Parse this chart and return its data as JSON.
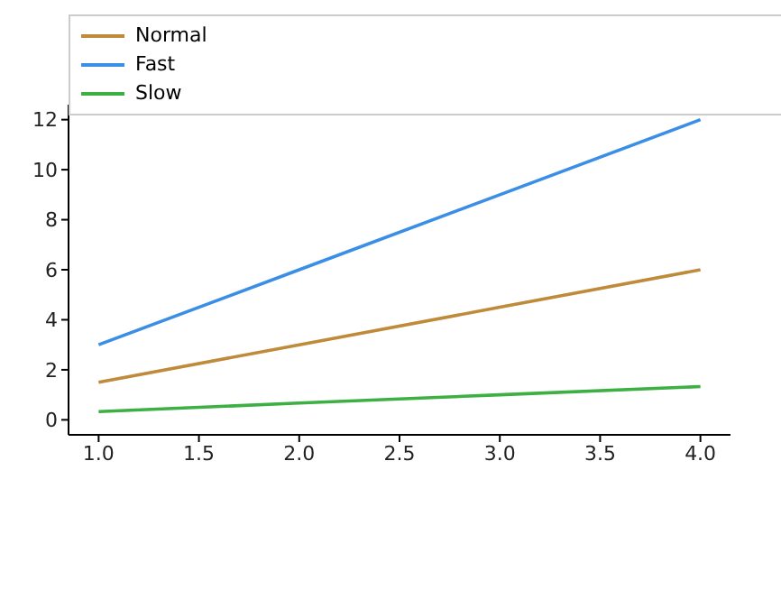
{
  "chart_data": {
    "type": "line",
    "x": [
      1,
      2,
      3,
      4
    ],
    "series": [
      {
        "name": "Normal",
        "color": "#bf8a3a",
        "values": [
          1.5,
          3,
          4.5,
          6
        ]
      },
      {
        "name": "Fast",
        "color": "#3a8ee6",
        "values": [
          3,
          6,
          9,
          12
        ]
      },
      {
        "name": "Slow",
        "color": "#3cb043",
        "values": [
          0.33,
          0.67,
          1,
          1.33
        ]
      }
    ],
    "xlim": [
      0.85,
      4.15
    ],
    "xticks": [
      {
        "value": 1,
        "label": "1.0"
      },
      {
        "value": 1.5,
        "label": "1.5"
      },
      {
        "value": 2,
        "label": "2.0"
      },
      {
        "value": 2.5,
        "label": "2.5"
      },
      {
        "value": 3,
        "label": "3.0"
      },
      {
        "value": 3.5,
        "label": "3.5"
      },
      {
        "value": 4,
        "label": "4.0"
      }
    ],
    "ylim": [
      -0.6,
      12.6
    ],
    "yticks": [
      0,
      2,
      4,
      6,
      8,
      10,
      12
    ],
    "legend": "top left",
    "grid": false,
    "marker": "none",
    "line_style": "solid"
  }
}
